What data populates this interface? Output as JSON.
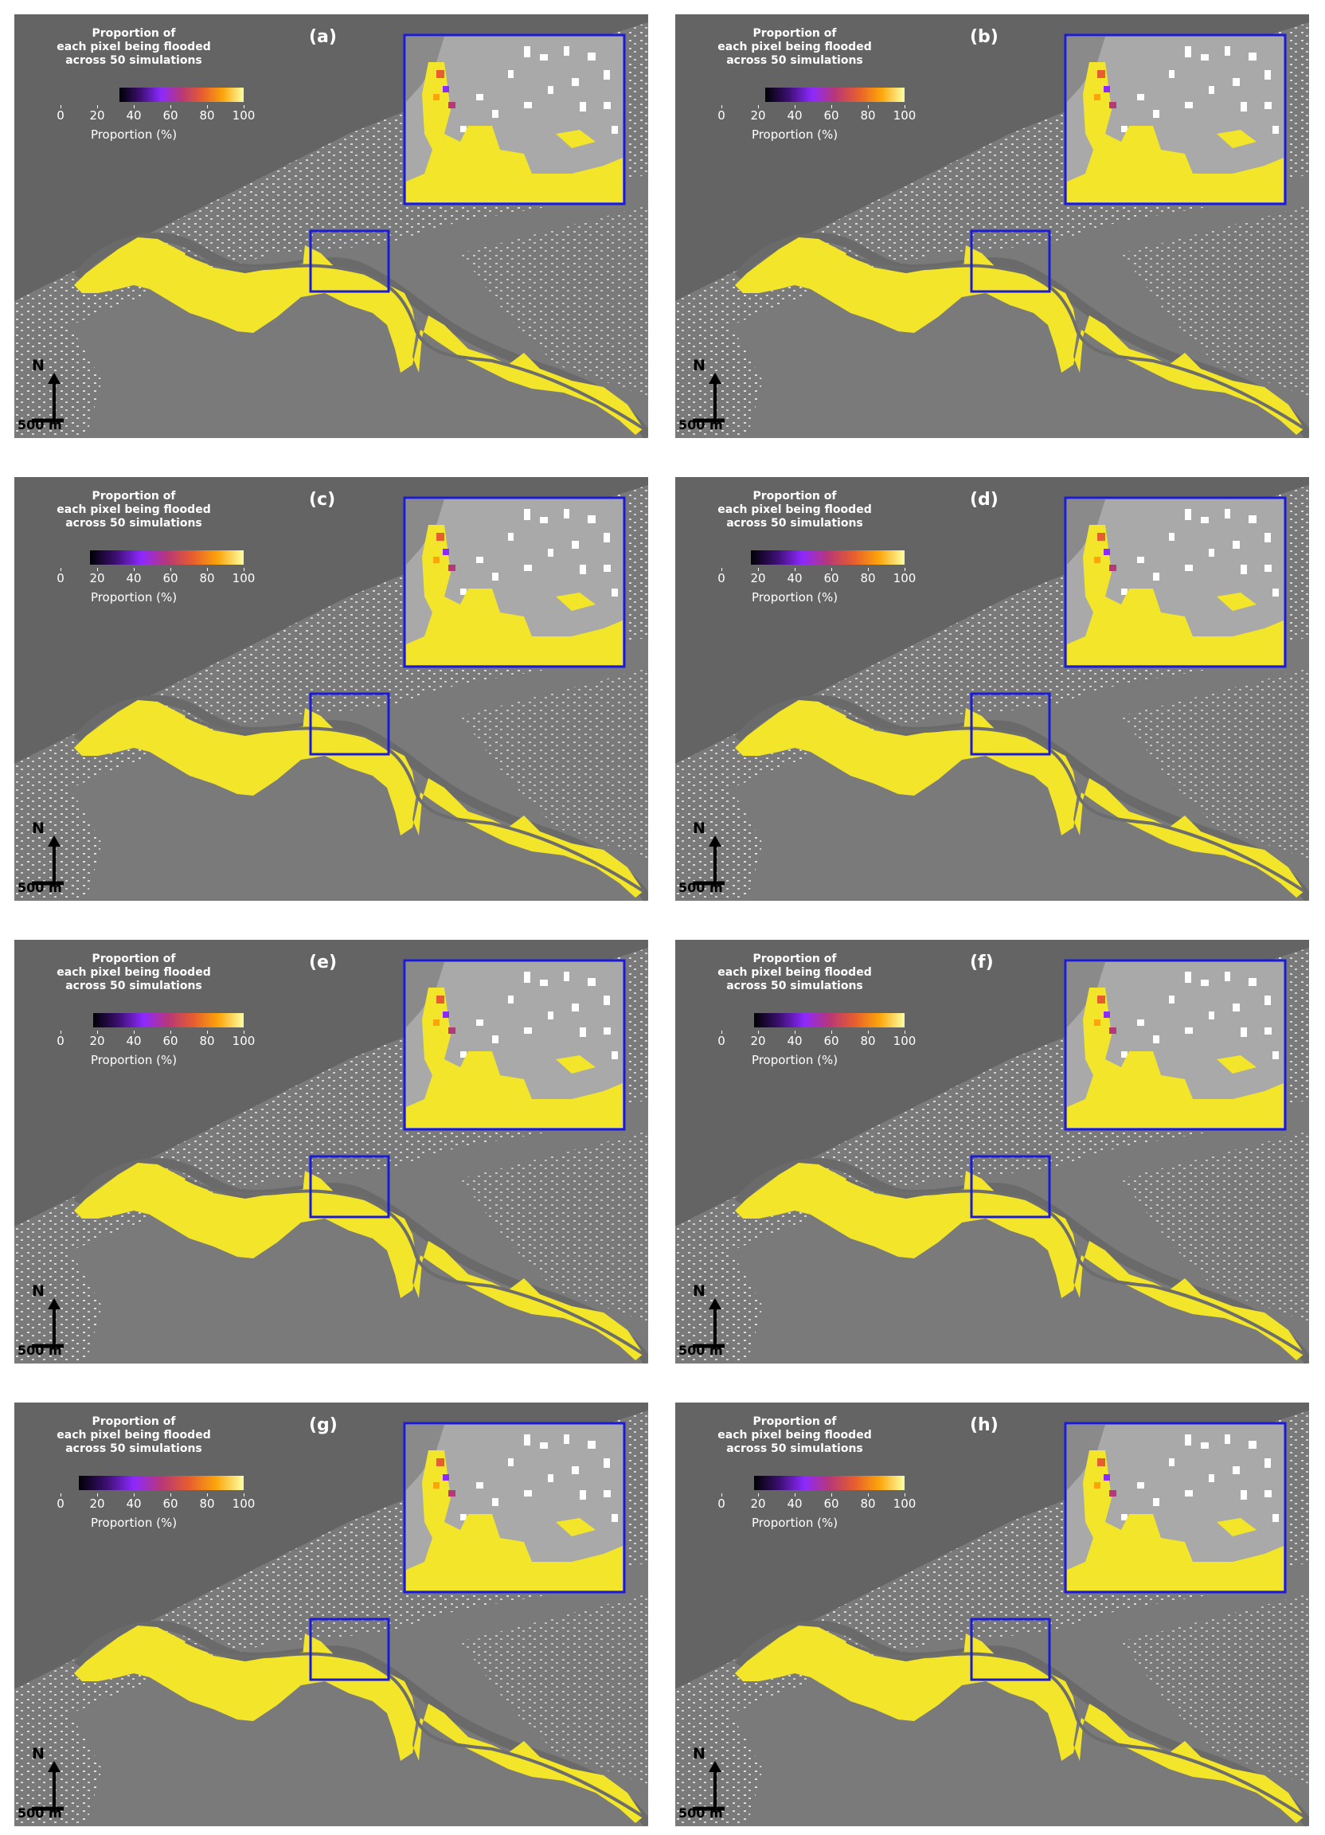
{
  "panels": [
    {
      "label": "(a)",
      "title_lines": [
        "Proportion of",
        "each pixel being flooded",
        "across 50 simulations"
      ],
      "ticks": [
        "0",
        "20",
        "40",
        "60",
        "80",
        "100"
      ],
      "colorbar_start": 32,
      "colorbar_label": "Proportion (%)"
    },
    {
      "label": "(b)",
      "title_lines": [
        "Proportion of",
        "each pixel being flooded",
        "across 50 simulations"
      ],
      "ticks": [
        "0",
        "20",
        "40",
        "60",
        "80",
        "100"
      ],
      "colorbar_start": 24,
      "colorbar_label": "Proportion (%)"
    },
    {
      "label": "(c)",
      "title_lines": [
        "Proportion of",
        "each pixel being flooded",
        "across 50 simulations"
      ],
      "ticks": [
        "0",
        "20",
        "40",
        "60",
        "80",
        "100"
      ],
      "colorbar_start": 16,
      "colorbar_label": "Proportion (%)"
    },
    {
      "label": "(d)",
      "title_lines": [
        "Proportion of",
        "each pixel being flooded",
        "across 50 simulations"
      ],
      "ticks": [
        "0",
        "20",
        "40",
        "60",
        "80",
        "100"
      ],
      "colorbar_start": 16,
      "colorbar_label": "Proportion (%)"
    },
    {
      "label": "(e)",
      "title_lines": [
        "Proportion of",
        "each pixel being flooded",
        "across 50 simulations"
      ],
      "ticks": [
        "0",
        "20",
        "40",
        "60",
        "80",
        "100"
      ],
      "colorbar_start": 18,
      "colorbar_label": "Proportion (%)"
    },
    {
      "label": "(f)",
      "title_lines": [
        "Proportion of",
        "each pixel being flooded",
        "across 50 simulations"
      ],
      "ticks": [
        "0",
        "20",
        "40",
        "60",
        "80",
        "100"
      ],
      "colorbar_start": 18,
      "colorbar_label": "Proportion (%)"
    },
    {
      "label": "(g)",
      "title_lines": [
        "Proportion of",
        "each pixel being flooded",
        "across 50 simulations"
      ],
      "ticks": [
        "0",
        "20",
        "40",
        "60",
        "80",
        "100"
      ],
      "colorbar_start": 10,
      "colorbar_label": "Proportion (%)"
    },
    {
      "label": "(h)",
      "title_lines": [
        "Proportion of",
        "each pixel being flooded",
        "across 50 simulations"
      ],
      "ticks": [
        "0",
        "20",
        "40",
        "60",
        "80",
        "100"
      ],
      "colorbar_start": 18,
      "colorbar_label": "Proportion (%)"
    }
  ],
  "north_label": "N",
  "scale_label": "500 m",
  "colors": {
    "flood": "#f2e52a",
    "inset_frame": "#1a1ad8",
    "terrain": "#7b7b7b",
    "sea": "#636363",
    "buildings": "#e8e8e8",
    "colormap": [
      "#000004",
      "#3b0f70",
      "#8c29ff",
      "#b73779",
      "#e65d2f",
      "#fca50a",
      "#fcffa4"
    ]
  }
}
